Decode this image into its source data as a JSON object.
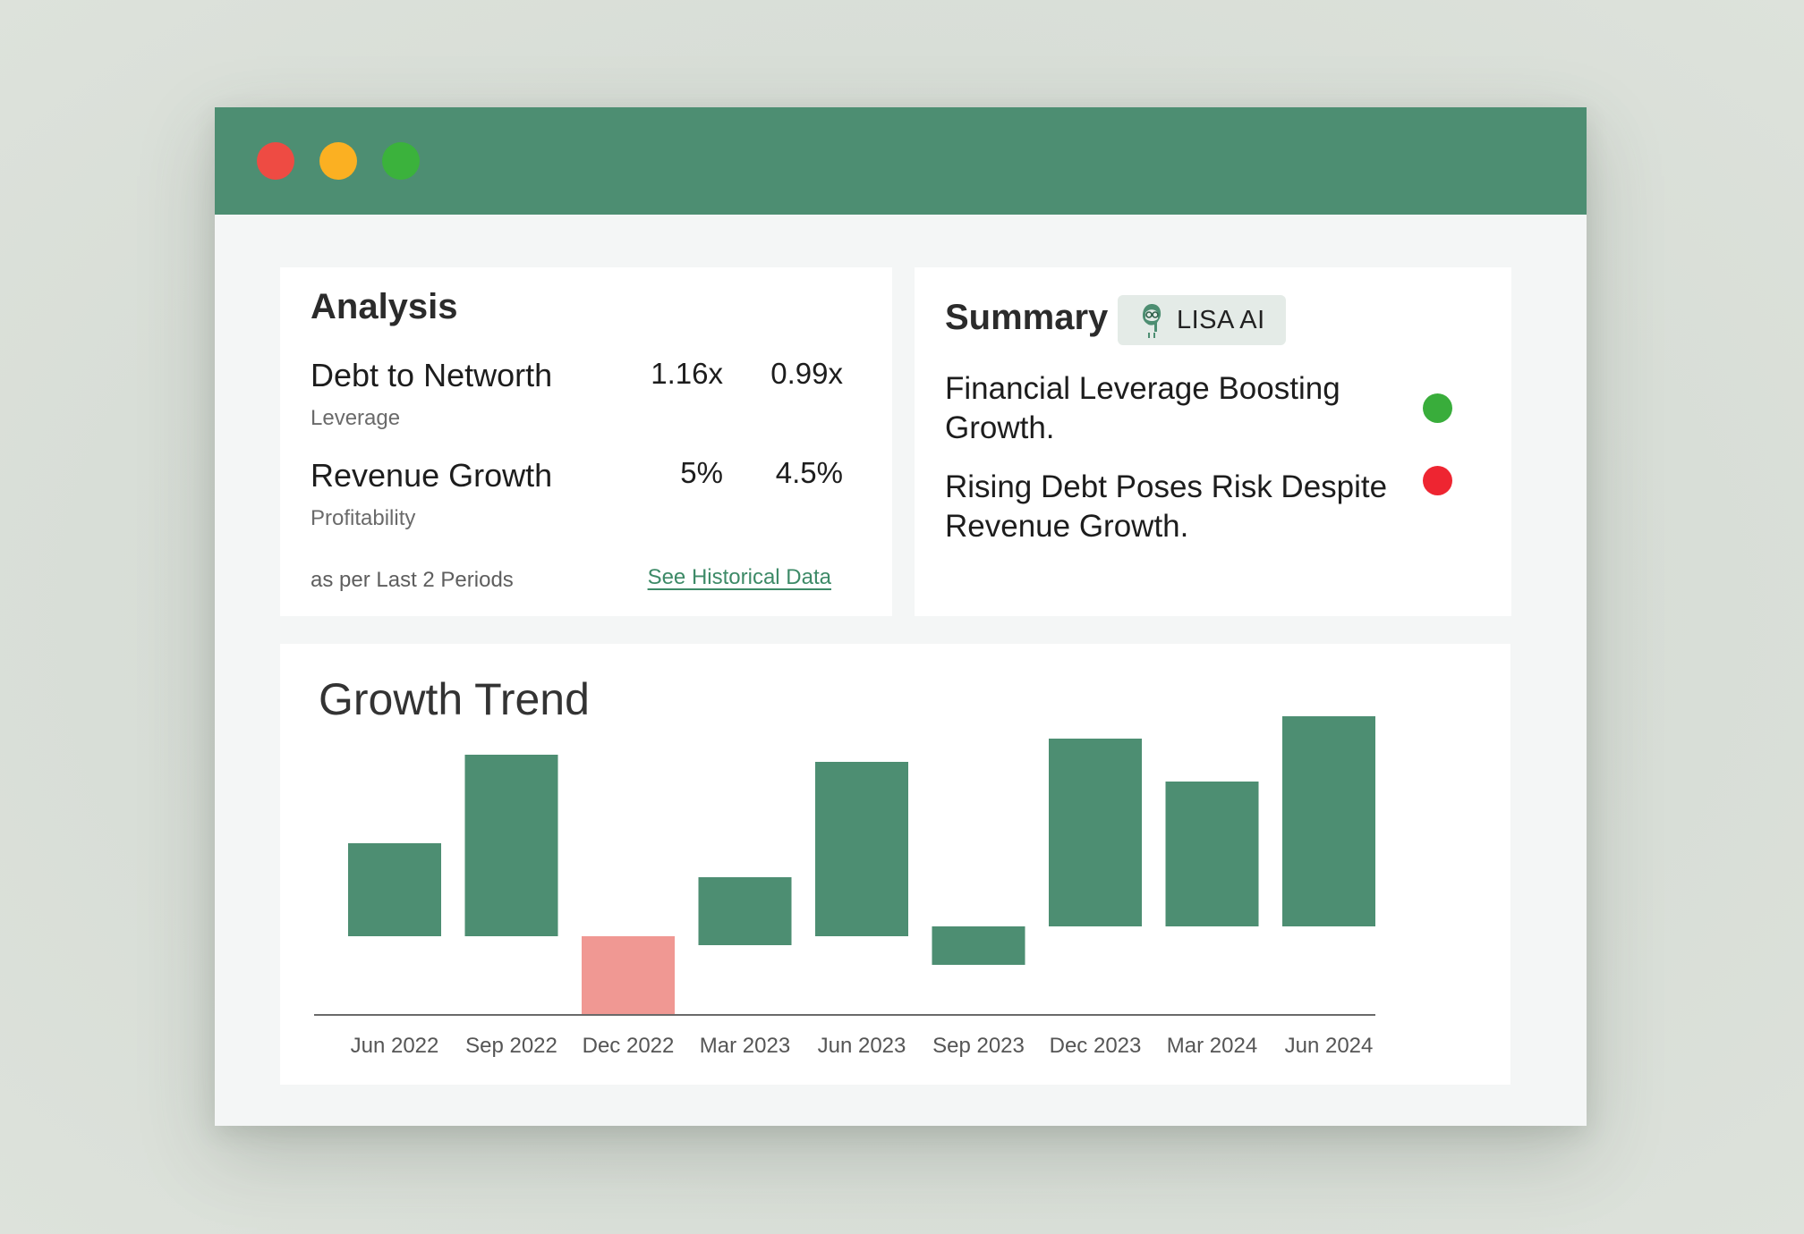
{
  "window": {
    "controls": {
      "close_color": "#ee4b43",
      "minimize_color": "#fbb022",
      "maximize_color": "#3bb23c"
    },
    "titlebar_color": "#4d8e72"
  },
  "analysis": {
    "title": "Analysis",
    "metrics": [
      {
        "name": "Debt to Networth",
        "category": "Leverage",
        "current": "1.16x",
        "previous": "0.99x"
      },
      {
        "name": "Revenue Growth",
        "category": "Profitability",
        "current": "5%",
        "previous": "4.5%"
      }
    ],
    "footnote": "as per Last 2 Periods",
    "link_label": "See Historical Data"
  },
  "summary": {
    "title": "Summary",
    "badge_label": "LISA AI",
    "badge_icon": "ai-assistant-avatar-icon",
    "insights": [
      {
        "text": "Financial Leverage Boosting Growth.",
        "status": "positive",
        "status_color": "#39ad3b"
      },
      {
        "text": "Rising Debt Poses Risk Despite Revenue Growth.",
        "status": "negative",
        "status_color": "#ee2531"
      }
    ]
  },
  "growth": {
    "title": "Growth Trend"
  },
  "chart_data": {
    "type": "bar",
    "title": "Growth Trend",
    "categories": [
      "Jun 2022",
      "Sep 2022",
      "Dec 2022",
      "Mar 2023",
      "Jun 2023",
      "Sep 2023",
      "Dec 2023",
      "Mar 2024",
      "Jun 2024"
    ],
    "bars": [
      {
        "bottom": 0,
        "top": 104
      },
      {
        "bottom": 0,
        "top": 203
      },
      {
        "bottom": -88,
        "top": 0
      },
      {
        "bottom": -10,
        "top": 66
      },
      {
        "bottom": 0,
        "top": 195
      },
      {
        "bottom": -32,
        "top": 11
      },
      {
        "bottom": 11,
        "top": 221
      },
      {
        "bottom": 11,
        "top": 173
      },
      {
        "bottom": 11,
        "top": 246
      }
    ],
    "positive_color": "#4d8e72",
    "negative_color": "#f09893",
    "ylim": [
      -88,
      246
    ],
    "grid": false,
    "legend": "none"
  }
}
